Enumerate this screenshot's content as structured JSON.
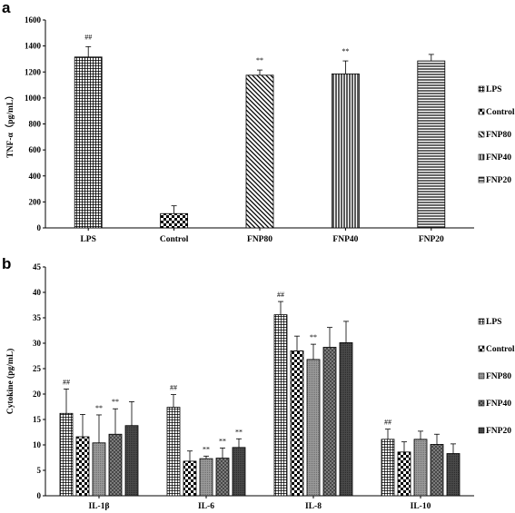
{
  "colors": {
    "foreground": "#000000",
    "background": "#ffffff"
  },
  "patterns": {
    "LPS": "grid-fine",
    "Control": "checker",
    "FNP80": "diagonal-hatch (a) / solid-grey dotted (b)",
    "FNP40": "vertical-lines (a) / cross-dotted (b)",
    "FNP20": "horizontal-lines (a) / dark-dotted (b)"
  },
  "chart_data": [
    {
      "panel": "a",
      "type": "bar",
      "ylabel": "TNF-α（pg/mL）",
      "xlabel": "",
      "ylim": [
        0,
        1600
      ],
      "yticks": [
        0,
        200,
        400,
        600,
        800,
        1000,
        1200,
        1400,
        1600
      ],
      "categories": [
        "LPS",
        "Control",
        "FNP80",
        "FNP40",
        "FNP20"
      ],
      "values": [
        1315,
        110,
        1175,
        1185,
        1285
      ],
      "errors": [
        80,
        60,
        40,
        100,
        50
      ],
      "annotations": [
        "##",
        "",
        "**",
        "**",
        ""
      ],
      "legend": [
        "LPS",
        "Control",
        "FNP80",
        "FNP40",
        "FNP20"
      ],
      "legend_position": "right"
    },
    {
      "panel": "b",
      "type": "bar",
      "ylabel": "Cytokine (pg/mL)",
      "xlabel": "",
      "ylim": [
        0,
        45
      ],
      "yticks": [
        0,
        5,
        10,
        15,
        20,
        25,
        30,
        35,
        40,
        45
      ],
      "categories": [
        "IL-1β",
        "IL-6",
        "IL-8",
        "IL-10"
      ],
      "series": [
        {
          "name": "LPS",
          "values": [
            16.2,
            17.4,
            35.6,
            11.1
          ],
          "errors": [
            4.8,
            2.5,
            2.6,
            2.0
          ],
          "annotations": [
            "##",
            "##",
            "##",
            "##"
          ]
        },
        {
          "name": "Control",
          "values": [
            11.6,
            6.8,
            28.5,
            8.6
          ],
          "errors": [
            4.4,
            2.0,
            2.9,
            2.0
          ],
          "annotations": [
            "",
            "",
            "",
            ""
          ]
        },
        {
          "name": "FNP80",
          "values": [
            10.4,
            7.3,
            26.8,
            11.1
          ],
          "errors": [
            5.5,
            0.5,
            3.0,
            1.6
          ],
          "annotations": [
            "**",
            "**",
            "**",
            ""
          ]
        },
        {
          "name": "FNP40",
          "values": [
            12.1,
            7.4,
            29.2,
            10.1
          ],
          "errors": [
            5.0,
            2.0,
            3.9,
            2.0
          ],
          "annotations": [
            "**",
            "**",
            "",
            ""
          ]
        },
        {
          "name": "FNP20",
          "values": [
            13.8,
            9.5,
            30.1,
            8.3
          ],
          "errors": [
            4.7,
            1.7,
            4.2,
            1.9
          ],
          "annotations": [
            "",
            "**",
            "",
            ""
          ]
        }
      ],
      "legend_position": "right"
    }
  ]
}
